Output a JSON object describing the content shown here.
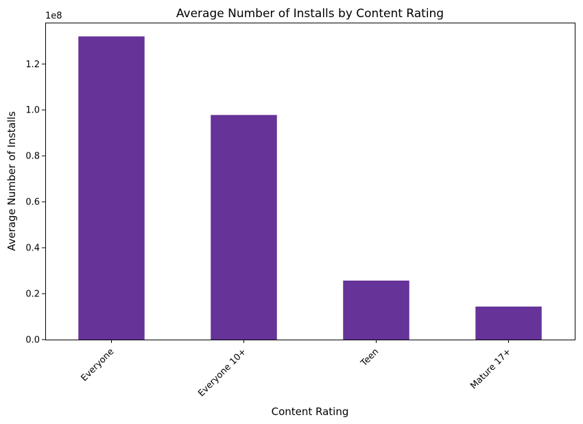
{
  "chart_data": {
    "type": "bar",
    "title": "Average Number of Installs by Content Rating",
    "xlabel": "Content Rating",
    "ylabel": "Average Number of Installs",
    "y_offset_label": "1e8",
    "categories": [
      "Everyone",
      "Everyone 10+",
      "Teen",
      "Mature 17+"
    ],
    "values": [
      132000000,
      97800000,
      25700000,
      14400000
    ],
    "ylim": [
      0,
      138000000
    ],
    "yticks": [
      0,
      20000000,
      40000000,
      60000000,
      80000000,
      100000000,
      120000000
    ],
    "ytick_labels": [
      "0.0",
      "0.2",
      "0.4",
      "0.6",
      "0.8",
      "1.0",
      "1.2"
    ],
    "bar_color": "#663399",
    "grid": false
  }
}
